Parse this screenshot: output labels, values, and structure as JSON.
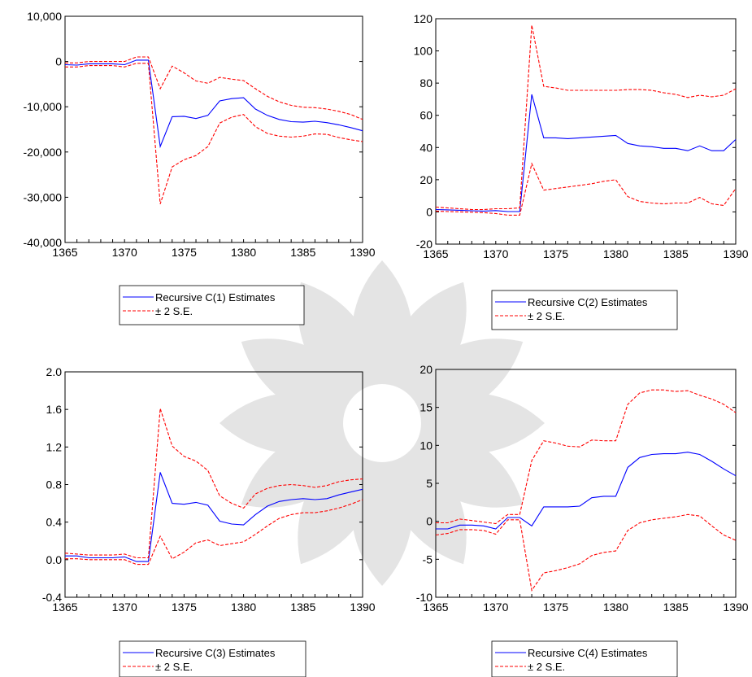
{
  "chart_data": [
    {
      "type": "line",
      "x": [
        1365,
        1366,
        1367,
        1368,
        1369,
        1370,
        1371,
        1372,
        1373,
        1374,
        1375,
        1376,
        1377,
        1378,
        1379,
        1380,
        1381,
        1382,
        1383,
        1384,
        1385,
        1386,
        1387,
        1388,
        1389,
        1390
      ],
      "xticks": [
        "1365",
        "1370",
        "1375",
        "1380",
        "1385",
        "1390"
      ],
      "xlim": [
        1365,
        1390
      ],
      "ylim": [
        -40000,
        10000
      ],
      "yticks": [
        {
          "v": -40000,
          "label": "-40,000"
        },
        {
          "v": -30000,
          "label": "-30,000"
        },
        {
          "v": -20000,
          "label": "-20,000"
        },
        {
          "v": -10000,
          "label": "-10,000"
        },
        {
          "v": 0,
          "label": "0"
        },
        {
          "v": 10000,
          "label": "10,000"
        }
      ],
      "series": [
        {
          "name": "Recursive C(1) Estimates",
          "color": "#0000ff",
          "style": "solid",
          "values": [
            -700,
            -800,
            -500,
            -500,
            -500,
            -700,
            300,
            300,
            -18800,
            -12200,
            -12100,
            -12600,
            -11900,
            -8700,
            -8200,
            -8000,
            -10500,
            -11900,
            -12800,
            -13300,
            -13400,
            -13200,
            -13500,
            -14000,
            -14600,
            -15300
          ]
        },
        {
          "name": "± 2 S.E.",
          "color": "#ff0000",
          "style": "dashed",
          "values": [
            -300,
            -300,
            0,
            0,
            0,
            0,
            1000,
            1000,
            -6000,
            -1000,
            -2500,
            -4300,
            -4800,
            -3500,
            -3900,
            -4200,
            -6000,
            -7700,
            -8900,
            -9700,
            -10100,
            -10200,
            -10500,
            -11000,
            -11700,
            -12800
          ]
        },
        {
          "name": "",
          "color": "#ff0000",
          "style": "dashed",
          "values": [
            -1200,
            -1200,
            -900,
            -900,
            -900,
            -1200,
            -400,
            -400,
            -31500,
            -23300,
            -21700,
            -20800,
            -18800,
            -13600,
            -12300,
            -11700,
            -14400,
            -15900,
            -16500,
            -16700,
            -16500,
            -16000,
            -16100,
            -16800,
            -17300,
            -17700
          ]
        }
      ],
      "legend": {
        "label1": "Recursive C(1) Estimates",
        "label2": "± 2 S.E."
      }
    },
    {
      "type": "line",
      "x": [
        1365,
        1366,
        1367,
        1368,
        1369,
        1370,
        1371,
        1372,
        1373,
        1374,
        1375,
        1376,
        1377,
        1378,
        1379,
        1380,
        1381,
        1382,
        1383,
        1384,
        1385,
        1386,
        1387,
        1388,
        1389,
        1390
      ],
      "xticks": [
        "1365",
        "1370",
        "1375",
        "1380",
        "1385",
        "1390"
      ],
      "xlim": [
        1365,
        1390
      ],
      "ylim": [
        -20,
        120
      ],
      "yticks": [
        {
          "v": -20,
          "label": "-20"
        },
        {
          "v": 0,
          "label": "0"
        },
        {
          "v": 20,
          "label": "20"
        },
        {
          "v": 40,
          "label": "40"
        },
        {
          "v": 60,
          "label": "60"
        },
        {
          "v": 80,
          "label": "80"
        },
        {
          "v": 100,
          "label": "100"
        },
        {
          "v": 120,
          "label": "120"
        }
      ],
      "series": [
        {
          "name": "Recursive C(2) Estimates",
          "color": "#0000ff",
          "style": "solid",
          "values": [
            1.5,
            1.3,
            1.0,
            0.7,
            0.5,
            0.8,
            0.2,
            0.2,
            73,
            46,
            46,
            45.5,
            46,
            46.5,
            47,
            47.5,
            42.5,
            41,
            40.5,
            39.5,
            39.5,
            38,
            41,
            38,
            38,
            45
          ]
        },
        {
          "name": "± 2 S.E.",
          "color": "#ff0000",
          "style": "dashed",
          "values": [
            3,
            2.5,
            2,
            1.5,
            1.5,
            2,
            2,
            2.5,
            116,
            78,
            77,
            75.5,
            75.5,
            75.5,
            75.5,
            75.5,
            76,
            76,
            75.5,
            74,
            73,
            71,
            72.5,
            71.5,
            72.5,
            76.5
          ]
        },
        {
          "name": "",
          "color": "#ff0000",
          "style": "dashed",
          "values": [
            0.5,
            0.2,
            0,
            -0.2,
            -0.5,
            -1,
            -2,
            -2,
            30,
            13.5,
            14.5,
            15.5,
            16.5,
            17.5,
            19,
            20,
            9.5,
            6.5,
            5.5,
            5,
            5.5,
            5.5,
            9,
            5,
            4,
            14.5
          ]
        }
      ],
      "legend": {
        "label1": "Recursive C(2) Estimates",
        "label2": "± 2 S.E."
      }
    },
    {
      "type": "line",
      "x": [
        1365,
        1366,
        1367,
        1368,
        1369,
        1370,
        1371,
        1372,
        1373,
        1374,
        1375,
        1376,
        1377,
        1378,
        1379,
        1380,
        1381,
        1382,
        1383,
        1384,
        1385,
        1386,
        1387,
        1388,
        1389,
        1390
      ],
      "xticks": [
        "1365",
        "1370",
        "1375",
        "1380",
        "1385",
        "1390"
      ],
      "xlim": [
        1365,
        1390
      ],
      "ylim": [
        -0.4,
        2.0
      ],
      "yticks": [
        {
          "v": -0.4,
          "label": "-0.4"
        },
        {
          "v": 0.0,
          "label": "0.0"
        },
        {
          "v": 0.4,
          "label": "0.4"
        },
        {
          "v": 0.8,
          "label": "0.8"
        },
        {
          "v": 1.2,
          "label": "1.2"
        },
        {
          "v": 1.6,
          "label": "1.6"
        },
        {
          "v": 2.0,
          "label": "2.0"
        }
      ],
      "series": [
        {
          "name": "Recursive C(3) Estimates",
          "color": "#0000ff",
          "style": "solid",
          "values": [
            0.04,
            0.04,
            0.02,
            0.02,
            0.02,
            0.03,
            -0.02,
            -0.02,
            0.93,
            0.6,
            0.59,
            0.61,
            0.58,
            0.41,
            0.38,
            0.37,
            0.48,
            0.57,
            0.62,
            0.64,
            0.65,
            0.64,
            0.65,
            0.69,
            0.72,
            0.75
          ]
        },
        {
          "name": "± 2 S.E.",
          "color": "#ff0000",
          "style": "dashed",
          "values": [
            0.07,
            0.06,
            0.05,
            0.05,
            0.05,
            0.06,
            0.02,
            0.02,
            1.61,
            1.21,
            1.1,
            1.05,
            0.95,
            0.68,
            0.6,
            0.55,
            0.7,
            0.76,
            0.79,
            0.8,
            0.79,
            0.77,
            0.79,
            0.83,
            0.85,
            0.86
          ]
        },
        {
          "name": "",
          "color": "#ff0000",
          "style": "dashed",
          "values": [
            0.01,
            0.01,
            0.0,
            0.0,
            0.0,
            0.0,
            -0.05,
            -0.05,
            0.25,
            0.01,
            0.08,
            0.18,
            0.21,
            0.15,
            0.17,
            0.19,
            0.27,
            0.36,
            0.44,
            0.48,
            0.5,
            0.5,
            0.52,
            0.55,
            0.59,
            0.64
          ]
        }
      ],
      "legend": {
        "label1": "Recursive C(3) Estimates",
        "label2": "± 2 S.E."
      }
    },
    {
      "type": "line",
      "x": [
        1365,
        1366,
        1367,
        1368,
        1369,
        1370,
        1371,
        1372,
        1373,
        1374,
        1375,
        1376,
        1377,
        1378,
        1379,
        1380,
        1381,
        1382,
        1383,
        1384,
        1385,
        1386,
        1387,
        1388,
        1389,
        1390
      ],
      "xticks": [
        "1365",
        "1370",
        "1375",
        "1380",
        "1385",
        "1390"
      ],
      "xlim": [
        1365,
        1390
      ],
      "ylim": [
        -10,
        20
      ],
      "yticks": [
        {
          "v": -10,
          "label": "-10"
        },
        {
          "v": -5,
          "label": "-5"
        },
        {
          "v": 0,
          "label": "0"
        },
        {
          "v": 5,
          "label": "5"
        },
        {
          "v": 10,
          "label": "10"
        },
        {
          "v": 15,
          "label": "15"
        },
        {
          "v": 20,
          "label": "20"
        }
      ],
      "series": [
        {
          "name": "Recursive C(4) Estimates",
          "color": "#0000ff",
          "style": "solid",
          "values": [
            -1.0,
            -1.0,
            -0.5,
            -0.5,
            -0.6,
            -1.0,
            0.5,
            0.5,
            -0.6,
            1.9,
            1.9,
            1.9,
            2.0,
            3.1,
            3.3,
            3.3,
            7.1,
            8.4,
            8.8,
            8.9,
            8.9,
            9.1,
            8.8,
            7.9,
            6.9,
            6.0
          ]
        },
        {
          "name": "± 2 S.E.",
          "color": "#ff0000",
          "style": "dashed",
          "values": [
            -0.2,
            -0.2,
            0.3,
            0.1,
            -0.1,
            -0.3,
            0.9,
            0.9,
            8.0,
            10.6,
            10.3,
            9.9,
            9.8,
            10.7,
            10.6,
            10.6,
            15.4,
            16.9,
            17.3,
            17.3,
            17.1,
            17.2,
            16.6,
            16.1,
            15.4,
            14.3
          ]
        },
        {
          "name": "",
          "color": "#ff0000",
          "style": "dashed",
          "values": [
            -1.8,
            -1.6,
            -1.1,
            -1.1,
            -1.2,
            -1.7,
            0.2,
            0.2,
            -9.1,
            -6.8,
            -6.5,
            -6.1,
            -5.6,
            -4.5,
            -4.1,
            -3.9,
            -1.2,
            -0.2,
            0.2,
            0.4,
            0.6,
            0.9,
            0.7,
            -0.6,
            -1.8,
            -2.5
          ]
        }
      ],
      "legend": {
        "label1": "Recursive C(4) Estimates",
        "label2": "± 2 S.E."
      }
    }
  ]
}
